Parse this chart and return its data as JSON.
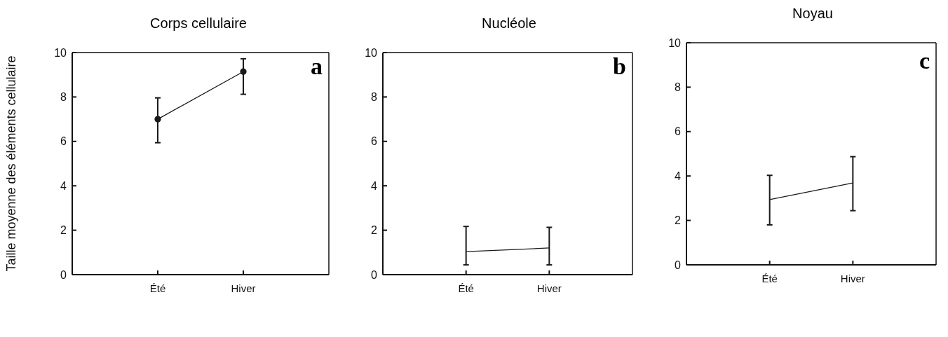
{
  "chart_data": [
    {
      "type": "line",
      "title": "Corps cellulaire",
      "ylabel": "Taille moyenne des éléments cellulaire",
      "categories": [
        "Été",
        "Hiver"
      ],
      "series": [
        {
          "color": "#1a1a1a",
          "values": [
            7.0,
            9.14
          ],
          "errors": [
            [
              5.94,
              7.96
            ],
            [
              8.12,
              9.72
            ]
          ]
        }
      ],
      "ylim": [
        0,
        10
      ],
      "yticks": [
        0,
        2,
        4,
        6,
        8,
        10
      ],
      "marker": "circle",
      "grid": false,
      "legend": false,
      "annotations": [
        "a"
      ]
    },
    {
      "type": "line",
      "title": "Nucléole",
      "categories": [
        "Été",
        "Hiver"
      ],
      "series": [
        {
          "color": "#1a1a1a",
          "values": [
            1.04,
            1.2
          ],
          "errors": [
            [
              0.44,
              2.17
            ],
            [
              0.44,
              2.13
            ]
          ]
        }
      ],
      "ylim": [
        0,
        10
      ],
      "yticks": [
        0,
        2,
        4,
        6,
        8,
        10
      ],
      "marker": "none",
      "grid": false,
      "legend": false,
      "annotations": [
        "b"
      ]
    },
    {
      "type": "line",
      "title": "Noyau",
      "categories": [
        "Été",
        "Hiver"
      ],
      "series": [
        {
          "color": "#1a1a1a",
          "values": [
            2.94,
            3.69
          ],
          "errors": [
            [
              1.8,
              4.03
            ],
            [
              2.44,
              4.87
            ]
          ]
        }
      ],
      "ylim": [
        0,
        10
      ],
      "yticks": [
        0,
        2,
        4,
        6,
        8,
        10
      ],
      "marker": "none",
      "grid": false,
      "legend": false,
      "annotations": [
        "c"
      ]
    }
  ]
}
